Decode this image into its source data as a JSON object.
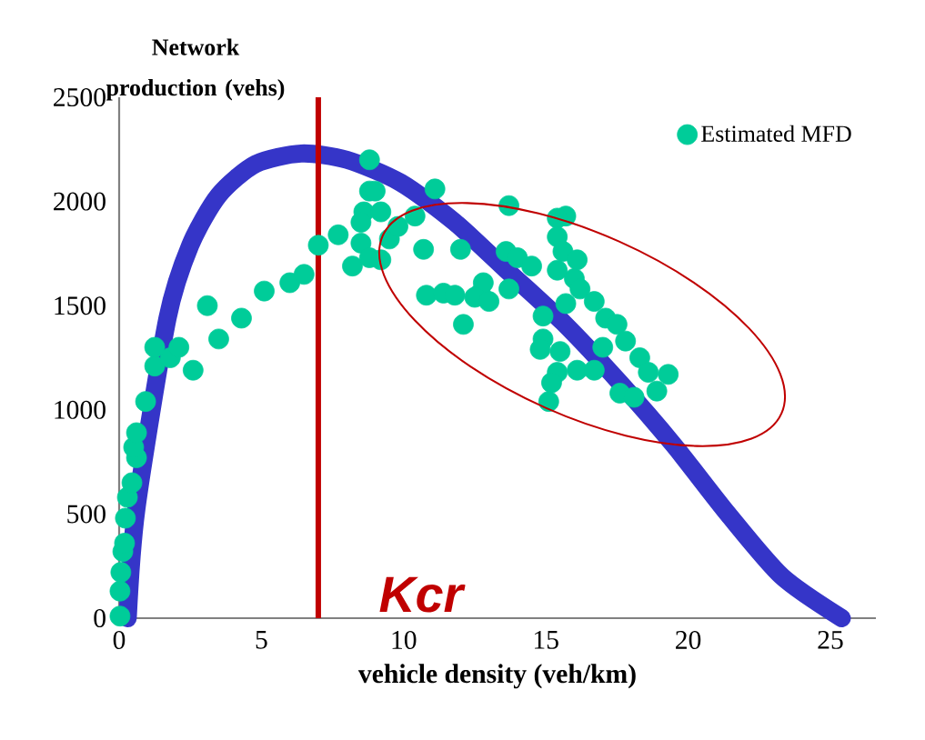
{
  "chart_data": {
    "type": "scatter",
    "xlabel": "vehicle density  (veh/km)",
    "ylabel": "Network production (vehs)",
    "xlim": [
      0,
      26.6
    ],
    "ylim": [
      0,
      2500
    ],
    "xticks": [
      0,
      5,
      10,
      15,
      20,
      25
    ],
    "yticks": [
      0,
      500,
      1000,
      1500,
      2000,
      2500
    ],
    "grid": false,
    "legend": "top right",
    "series": [
      {
        "name": "Estimated MFD",
        "color": "#00cc99",
        "marker": "circle",
        "x": [
          0.03,
          0.03,
          0.06,
          0.13,
          0.19,
          0.22,
          0.29,
          0.45,
          0.61,
          0.51,
          0.61,
          0.93,
          1.25,
          1.8,
          1.25,
          2.1,
          2.6,
          3.5,
          3.1,
          4.3,
          5.1,
          6.0,
          6.5,
          7.0,
          7.7,
          8.2,
          8.8,
          8.8,
          8.6,
          8.5,
          8.5,
          8.8,
          9.2,
          9.5,
          9.8,
          9.2,
          9.0,
          11.1,
          10.4,
          10.7,
          12.0,
          10.8,
          11.4,
          11.8,
          12.7,
          13.7,
          12.1,
          12.8,
          12.5,
          13.0,
          13.6,
          14.0,
          14.5,
          13.7,
          15.7,
          15.4,
          15.4,
          15.6,
          16.1,
          15.4,
          16.0,
          16.2,
          14.9,
          15.7,
          16.7,
          17.1,
          17.5,
          17.8,
          14.9,
          14.8,
          15.5,
          15.4,
          15.2,
          15.1,
          16.1,
          16.7,
          17.0,
          18.3,
          18.6,
          19.3,
          17.6,
          18.1,
          18.9
        ],
        "values": [
          10,
          130,
          220,
          320,
          360,
          480,
          580,
          650,
          770,
          820,
          890,
          1040,
          1210,
          1250,
          1300,
          1300,
          1190,
          1340,
          1500,
          1440,
          1570,
          1610,
          1650,
          1790,
          1840,
          1690,
          2200,
          2050,
          1950,
          1900,
          1800,
          1730,
          1720,
          1820,
          1880,
          1950,
          2050,
          2060,
          1930,
          1770,
          1770,
          1550,
          1560,
          1550,
          1560,
          1980,
          1410,
          1610,
          1540,
          1520,
          1760,
          1730,
          1690,
          1580,
          1930,
          1920,
          1830,
          1760,
          1720,
          1670,
          1630,
          1580,
          1450,
          1510,
          1520,
          1440,
          1410,
          1330,
          1340,
          1290,
          1280,
          1180,
          1130,
          1040,
          1190,
          1190,
          1300,
          1250,
          1180,
          1170,
          1080,
          1060,
          1090
        ]
      },
      {
        "type": "line",
        "color": "#3535c8",
        "marker": "none",
        "x": [
          0.3,
          0.6,
          1.7,
          2.5,
          3.5,
          4.8,
          6.4,
          8.0,
          9.9,
          11.8,
          13.7,
          15.6,
          17.6,
          19.5,
          21.4,
          23.3,
          25.4
        ],
        "values": [
          0,
          520,
          1440,
          1790,
          2030,
          2180,
          2230,
          2200,
          2090,
          1900,
          1660,
          1420,
          1130,
          830,
          500,
          200,
          0
        ]
      }
    ],
    "ref_lines": [
      {
        "axis": "x",
        "value": 7.0,
        "label": "Kcr",
        "color": "#c00000"
      }
    ]
  }
}
